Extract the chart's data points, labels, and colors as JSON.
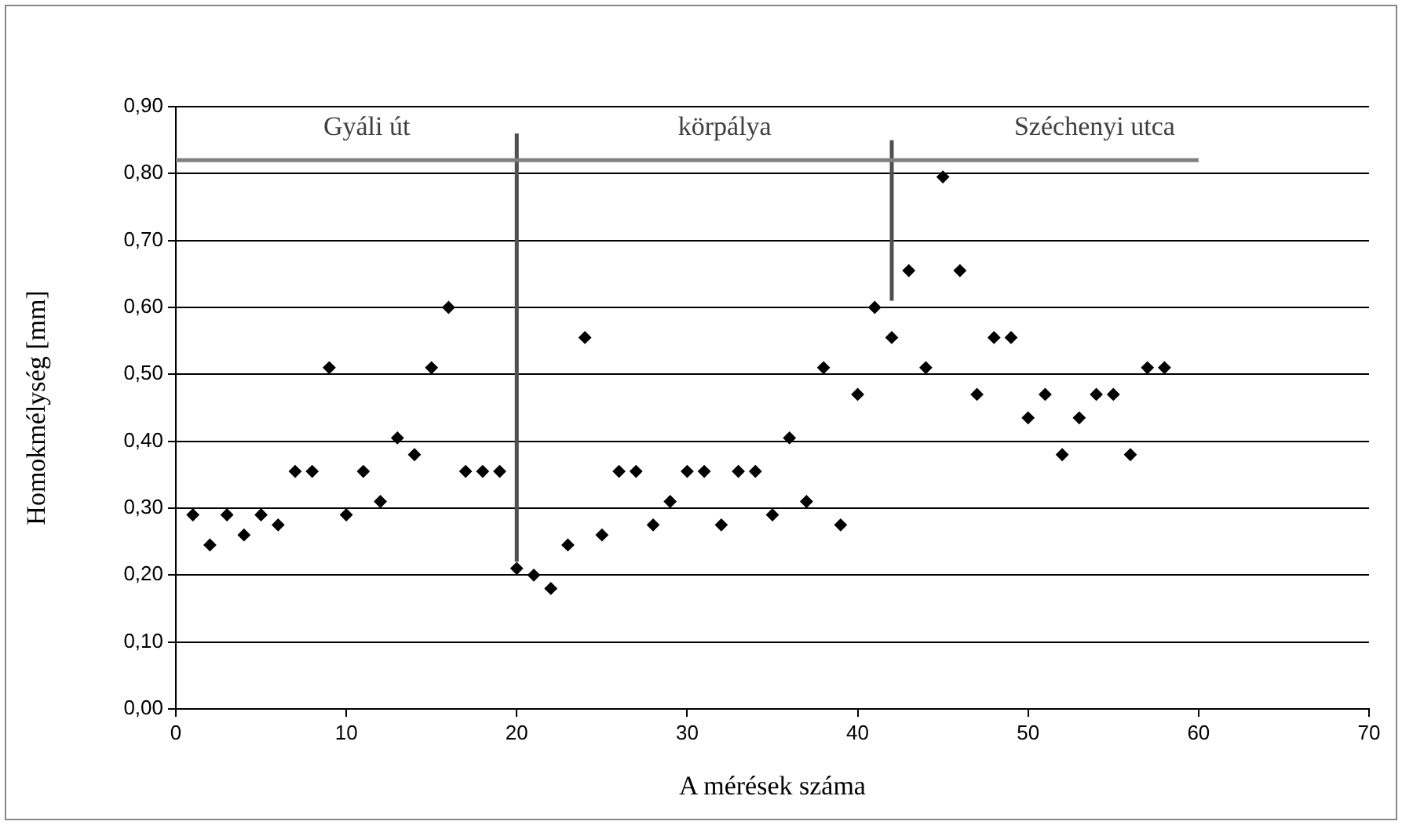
{
  "chart_data": {
    "type": "scatter",
    "xlabel": "A mérések száma",
    "ylabel": "Homokmélység [mm]",
    "xlim": [
      0,
      70
    ],
    "xticks": [
      0,
      10,
      20,
      30,
      40,
      50,
      60,
      70
    ],
    "ylim": [
      0,
      0.9
    ],
    "yticks": [
      {
        "value": 0,
        "label": "0,00"
      },
      {
        "value": 0.1,
        "label": "0,10"
      },
      {
        "value": 0.2,
        "label": "0,20"
      },
      {
        "value": 0.3,
        "label": "0,30"
      },
      {
        "value": 0.4,
        "label": "0,40"
      },
      {
        "value": 0.5,
        "label": "0,50"
      },
      {
        "value": 0.6,
        "label": "0,60"
      },
      {
        "value": 0.7,
        "label": "0,70"
      },
      {
        "value": 0.8,
        "label": "0,80"
      },
      {
        "value": 0.9,
        "label": "0,90"
      }
    ],
    "grid": "y",
    "legend": false,
    "marker": "diamond",
    "series": [
      {
        "color": "#000000",
        "x": [
          1,
          2,
          3,
          4,
          5,
          6,
          7,
          8,
          9,
          10,
          11,
          12,
          13,
          14,
          15,
          16,
          17,
          18,
          19,
          20,
          21,
          22,
          23,
          24,
          25,
          26,
          27,
          28,
          29,
          30,
          31,
          32,
          33,
          34,
          35,
          36,
          37,
          38,
          39,
          40,
          41,
          42,
          43,
          44,
          45,
          46,
          47,
          48,
          49,
          50,
          51,
          52,
          53,
          54,
          55,
          56,
          57,
          58
        ],
        "values": [
          0.29,
          0.245,
          0.29,
          0.26,
          0.29,
          0.275,
          0.355,
          0.355,
          0.51,
          0.29,
          0.355,
          0.31,
          0.405,
          0.38,
          0.51,
          0.6,
          0.355,
          0.355,
          0.355,
          0.21,
          0.2,
          0.18,
          0.245,
          0.555,
          0.26,
          0.355,
          0.355,
          0.275,
          0.31,
          0.355,
          0.355,
          0.275,
          0.355,
          0.355,
          0.29,
          0.405,
          0.31,
          0.51,
          0.275,
          0.47,
          0.6,
          0.555,
          0.655,
          0.51,
          0.795,
          0.655,
          0.47,
          0.555,
          0.555,
          0.435,
          0.47,
          0.38,
          0.435,
          0.47,
          0.47,
          0.38,
          0.51,
          0.51
        ]
      },
      {
        "type": "line",
        "color": "#808080",
        "marker": "none",
        "x": [
          0,
          60
        ],
        "values": [
          0.82,
          0.82
        ]
      },
      {
        "type": "line",
        "color": "#505050",
        "marker": "none",
        "x": [
          20,
          20
        ],
        "values": [
          0.22,
          0.86
        ]
      },
      {
        "type": "line",
        "color": "#505050",
        "marker": "none",
        "x": [
          42,
          42
        ],
        "values": [
          0.61,
          0.85
        ]
      }
    ],
    "annotations": [
      "Gyáli út",
      "körpálya",
      "Széchenyi utca"
    ]
  }
}
